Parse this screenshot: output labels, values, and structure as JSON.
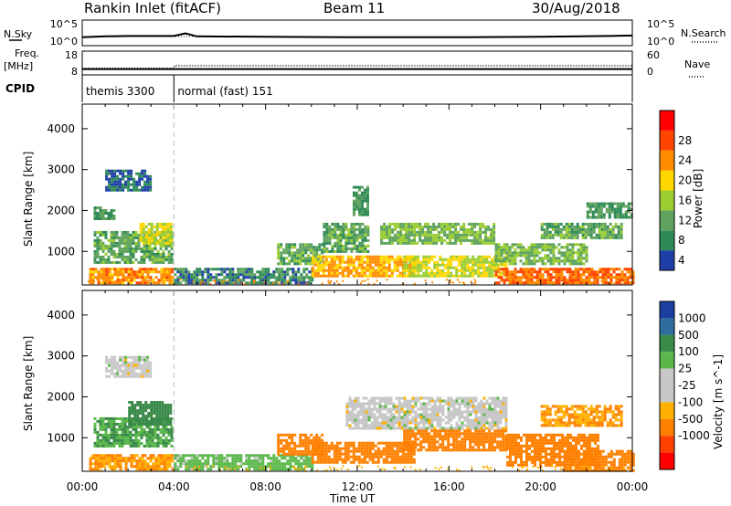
{
  "header": {
    "station": "Rankin Inlet (fitACF)",
    "beam": "Beam 11",
    "date": "30/Aug/2018"
  },
  "colors": {
    "power_scale": [
      "#0000ff",
      "#1f3fa8",
      "#2e8b57",
      "#5fa35f",
      "#9acd32",
      "#ffd700",
      "#ff8c00",
      "#ff4500",
      "#ff0000"
    ],
    "velocity_scale": [
      "#1a3fa0",
      "#2d6e9e",
      "#3a8a4a",
      "#5ab84a",
      "#c8c8c8",
      "#c8c8c8",
      "#ffb000",
      "#ff8000",
      "#ff4000",
      "#ff0000"
    ]
  },
  "chart_data": [
    {
      "type": "line",
      "panel": "noise",
      "left_label": "N.Sky",
      "right_label": "N.Search",
      "y_ticks_left": [
        "10^5",
        "10^0"
      ],
      "y_ticks_right": [
        "10^5",
        "10^0"
      ],
      "series": [
        {
          "name": "N.Sky",
          "x": [
            "00:00",
            "01:00",
            "02:00",
            "03:00",
            "04:00",
            "04:30",
            "05:00",
            "08:00",
            "12:00",
            "16:00",
            "20:00",
            "23:00",
            "24:00"
          ],
          "values": [
            1.5,
            1.7,
            1.8,
            1.8,
            1.8,
            2.4,
            1.7,
            1.6,
            1.5,
            1.5,
            1.6,
            1.8,
            1.9
          ]
        },
        {
          "name": "N.Search",
          "x": [
            "00:00",
            "04:00",
            "08:00",
            "12:00",
            "16:00",
            "20:00",
            "24:00"
          ],
          "values": [
            1.6,
            1.7,
            1.6,
            1.5,
            1.5,
            1.6,
            1.8
          ]
        }
      ]
    },
    {
      "type": "line",
      "panel": "frequency",
      "left_label_top": "Freq.",
      "left_label_unit": "[MHz]",
      "right_label": "Nave",
      "y_ticks_left": [
        "18",
        "8"
      ],
      "y_ticks_right": [
        "60",
        "0"
      ],
      "series": [
        {
          "name": "Freq.",
          "x": [
            "00:00",
            "24:00"
          ],
          "values": [
            10.0,
            10.0
          ]
        },
        {
          "name": "Nave",
          "x": [
            "00:00",
            "04:00",
            "04:01",
            "24:00"
          ],
          "values": [
            14,
            14,
            22,
            22
          ]
        }
      ]
    },
    {
      "type": "table",
      "panel": "cpid",
      "label": "CPID",
      "modes": [
        {
          "name": "themis 3300",
          "start": "00:00",
          "end": "04:00"
        },
        {
          "name": "normal (fast) 151",
          "start": "04:00",
          "end": "24:00"
        }
      ]
    },
    {
      "type": "heatmap",
      "panel": "power",
      "ylabel": "Slant Range [km]",
      "colorbar_label": "Power [dB]",
      "colorbar_ticks": [
        4,
        8,
        12,
        16,
        20,
        24,
        28
      ],
      "y_ticks": [
        1000,
        2000,
        3000,
        4000
      ],
      "ylim": [
        180,
        4600
      ],
      "xlim": [
        "00:00",
        "24:00"
      ],
      "regions": [
        {
          "t0": 0.3,
          "t1": 4.0,
          "r0": 200,
          "r1": 600,
          "value": 26
        },
        {
          "t0": 0.5,
          "t1": 3.9,
          "r0": 700,
          "r1": 1500,
          "value": 14
        },
        {
          "t0": 2.5,
          "t1": 3.9,
          "r0": 1200,
          "r1": 1700,
          "value": 20
        },
        {
          "t0": 0.5,
          "t1": 1.4,
          "r0": 1800,
          "r1": 2100,
          "value": 12
        },
        {
          "t0": 1.0,
          "t1": 3.0,
          "r0": 2500,
          "r1": 3000,
          "value": 8
        },
        {
          "t0": 4.0,
          "t1": 10.0,
          "r0": 200,
          "r1": 600,
          "value": 10
        },
        {
          "t0": 8.5,
          "t1": 10.5,
          "r0": 700,
          "r1": 1200,
          "value": 14
        },
        {
          "t0": 10.0,
          "t1": 14.5,
          "r0": 400,
          "r1": 900,
          "value": 24
        },
        {
          "t0": 10.5,
          "t1": 12.5,
          "r0": 1000,
          "r1": 1700,
          "value": 14
        },
        {
          "t0": 11.8,
          "t1": 12.4,
          "r0": 1900,
          "r1": 2600,
          "value": 12
        },
        {
          "t0": 13.0,
          "t1": 18.0,
          "r0": 1200,
          "r1": 1700,
          "value": 16
        },
        {
          "t0": 14.0,
          "t1": 18.5,
          "r0": 400,
          "r1": 900,
          "value": 20
        },
        {
          "t0": 18.0,
          "t1": 24.0,
          "r0": 200,
          "r1": 600,
          "value": 28
        },
        {
          "t0": 18.0,
          "t1": 22.0,
          "r0": 700,
          "r1": 1200,
          "value": 16
        },
        {
          "t0": 20.0,
          "t1": 23.5,
          "r0": 1300,
          "r1": 1700,
          "value": 14
        },
        {
          "t0": 22.0,
          "t1": 24.0,
          "r0": 1800,
          "r1": 2200,
          "value": 12
        }
      ]
    },
    {
      "type": "heatmap",
      "panel": "velocity",
      "ylabel": "Slant Range [km]",
      "colorbar_label": "Velocity [m s^-1]",
      "colorbar_ticks": [
        1000,
        500,
        100,
        25,
        -25,
        -100,
        -500,
        -1000
      ],
      "y_ticks": [
        1000,
        2000,
        3000,
        4000
      ],
      "ylim": [
        180,
        4600
      ],
      "xlim": [
        "00:00",
        "24:00"
      ],
      "xlabel": "Time UT",
      "x_ticks": [
        "00:00",
        "04:00",
        "08:00",
        "12:00",
        "16:00",
        "20:00",
        "00:00"
      ],
      "regions": [
        {
          "t0": 0.3,
          "t1": 4.0,
          "r0": 200,
          "r1": 600,
          "value": -100
        },
        {
          "t0": 0.5,
          "t1": 3.9,
          "r0": 800,
          "r1": 1500,
          "value": 100
        },
        {
          "t0": 2.0,
          "t1": 3.9,
          "r0": 1300,
          "r1": 1900,
          "value": 300
        },
        {
          "t0": 1.0,
          "t1": 3.0,
          "r0": 2500,
          "r1": 3000,
          "value": 0
        },
        {
          "t0": 4.0,
          "t1": 10.0,
          "r0": 200,
          "r1": 600,
          "value": 50
        },
        {
          "t0": 8.5,
          "t1": 10.5,
          "r0": 600,
          "r1": 1100,
          "value": -150
        },
        {
          "t0": 10.0,
          "t1": 14.5,
          "r0": 400,
          "r1": 900,
          "value": -300
        },
        {
          "t0": 11.5,
          "t1": 18.5,
          "r0": 1200,
          "r1": 2000,
          "value": 0
        },
        {
          "t0": 14.0,
          "t1": 18.5,
          "r0": 700,
          "r1": 1200,
          "value": -200
        },
        {
          "t0": 18.5,
          "t1": 22.5,
          "r0": 300,
          "r1": 1100,
          "value": -300
        },
        {
          "t0": 21.0,
          "t1": 24.0,
          "r0": 200,
          "r1": 700,
          "value": -150
        },
        {
          "t0": 20.0,
          "t1": 23.5,
          "r0": 1300,
          "r1": 1800,
          "value": -100
        }
      ]
    }
  ]
}
